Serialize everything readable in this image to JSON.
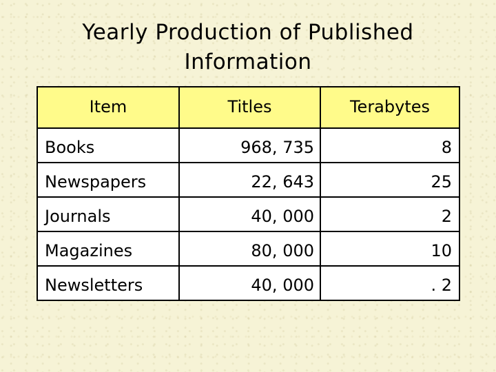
{
  "title": {
    "line1": "Yearly Production of Published",
    "line2": "Information"
  },
  "table": {
    "headers": [
      "Item",
      "Titles",
      "Terabytes"
    ],
    "rows": [
      {
        "item": "Books",
        "titles": "968, 735",
        "terabytes": "8"
      },
      {
        "item": "Newspapers",
        "titles": "22, 643",
        "terabytes": "25"
      },
      {
        "item": "Journals",
        "titles": "40, 000",
        "terabytes": "2"
      },
      {
        "item": "Magazines",
        "titles": "80, 000",
        "terabytes": "10"
      },
      {
        "item": "Newsletters",
        "titles": "40, 000",
        "terabytes": ". 2"
      }
    ]
  },
  "colors": {
    "background": "#f6f3d6",
    "header_fill": "#fffb8a",
    "cell_fill": "#ffffff",
    "border": "#000000"
  }
}
